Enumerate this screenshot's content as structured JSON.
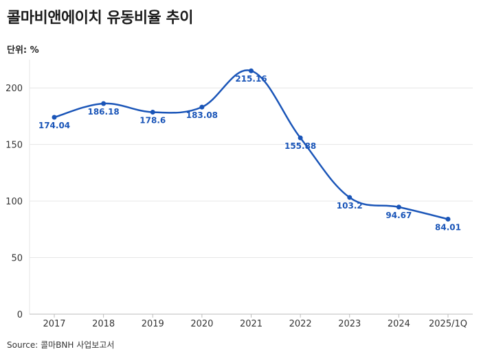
{
  "header": {
    "title": "콜마비앤에이치 유동비율 추이",
    "unit": "단위: %"
  },
  "footer": {
    "source": "Source: 콜마BNH 사업보고서"
  },
  "colors": {
    "line": "#1a55b8",
    "grid": "#e6e6e6"
  },
  "chart_data": {
    "type": "line",
    "title": "콜마비앤에이치 유동비율 추이",
    "xlabel": "",
    "ylabel": "",
    "categories": [
      "2017",
      "2018",
      "2019",
      "2020",
      "2021",
      "2022",
      "2023",
      "2024",
      "2025/1Q"
    ],
    "series": [
      {
        "values": [
          174.04,
          186.18,
          178.6,
          183.08,
          215.16,
          155.88,
          103.2,
          94.67,
          84.01
        ]
      }
    ],
    "data_labels": [
      "174.04",
      "186.18",
      "178.6",
      "183.08",
      "215.16",
      "155.88",
      "103.2",
      "94.67",
      "84.01"
    ],
    "yticks": [
      0,
      50,
      100,
      150,
      200
    ],
    "ylim": [
      0,
      225
    ],
    "grid": true,
    "smooth": true
  }
}
